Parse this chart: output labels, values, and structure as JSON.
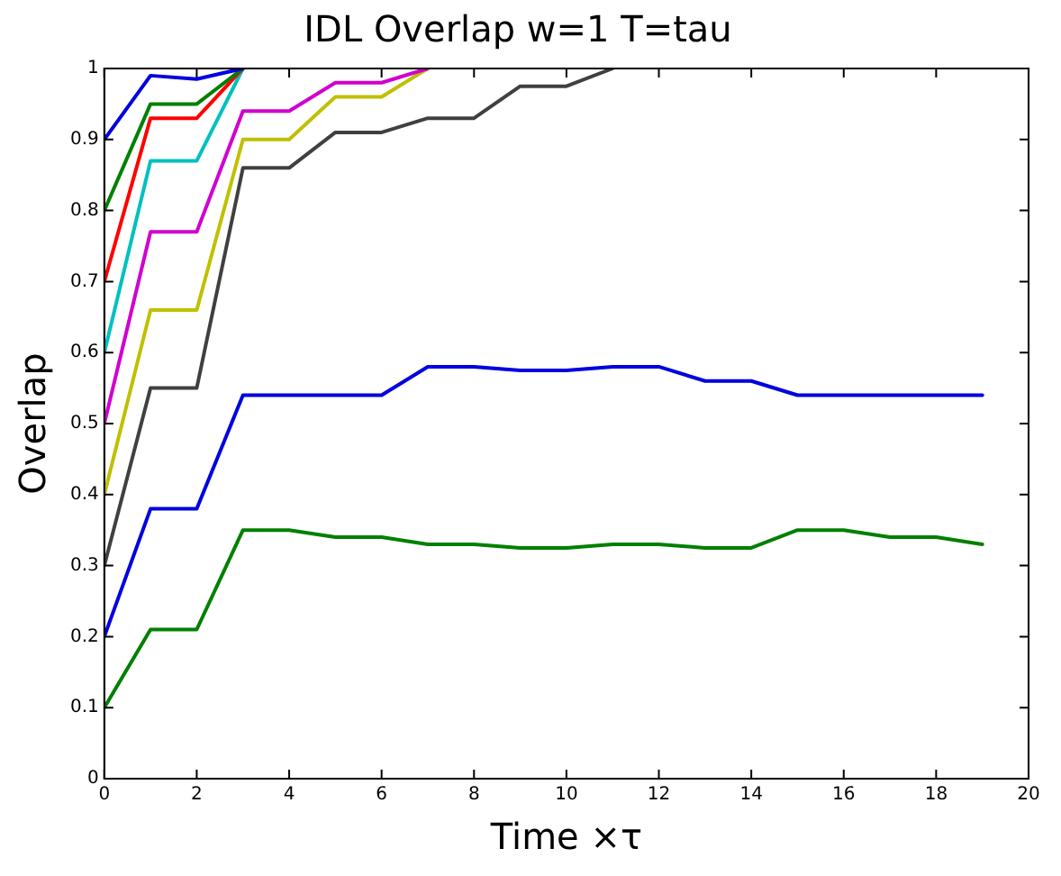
{
  "chart_data": {
    "type": "line",
    "title": "IDL Overlap w=1 T=tau",
    "xlabel": "Time ×τ",
    "ylabel": "Overlap",
    "x": [
      0,
      1,
      2,
      3,
      4,
      5,
      6,
      7,
      8,
      9,
      10,
      11,
      12,
      13,
      14,
      15,
      16,
      17,
      18,
      19
    ],
    "xlim": [
      0,
      20
    ],
    "xticks": [
      0,
      2,
      4,
      6,
      8,
      10,
      12,
      14,
      16,
      18,
      20
    ],
    "ylim": [
      0,
      1
    ],
    "yticks": [
      0,
      0.1,
      0.2,
      0.3,
      0.4,
      0.5,
      0.6,
      0.7,
      0.8,
      0.9,
      1
    ],
    "grid": false,
    "legend": false,
    "marker": "none",
    "line_style": "solid",
    "series": [
      {
        "color": "#0000e0",
        "values": [
          0.9,
          0.99,
          0.985,
          1,
          null,
          null,
          null,
          null,
          null,
          null,
          null,
          null,
          null,
          null,
          null,
          null,
          null,
          null,
          null,
          null
        ]
      },
      {
        "color": "#008000",
        "values": [
          0.8,
          0.95,
          0.95,
          1,
          null,
          null,
          null,
          null,
          null,
          null,
          null,
          null,
          null,
          null,
          null,
          null,
          null,
          null,
          null,
          null
        ]
      },
      {
        "color": "#ff0000",
        "values": [
          0.7,
          0.93,
          0.93,
          1,
          null,
          null,
          null,
          null,
          null,
          null,
          null,
          null,
          null,
          null,
          null,
          null,
          null,
          null,
          null,
          null
        ]
      },
      {
        "color": "#00c0c0",
        "values": [
          0.6,
          0.87,
          0.87,
          1,
          null,
          null,
          null,
          null,
          null,
          null,
          null,
          null,
          null,
          null,
          null,
          null,
          null,
          null,
          null,
          null
        ]
      },
      {
        "color": "#d000d0",
        "values": [
          0.5,
          0.77,
          0.77,
          0.94,
          0.94,
          0.98,
          0.98,
          1,
          null,
          null,
          null,
          null,
          null,
          null,
          null,
          null,
          null,
          null,
          null,
          null
        ]
      },
      {
        "color": "#c0c000",
        "values": [
          0.4,
          0.66,
          0.66,
          0.9,
          0.9,
          0.96,
          0.96,
          1,
          null,
          null,
          null,
          null,
          null,
          null,
          null,
          null,
          null,
          null,
          null,
          null
        ]
      },
      {
        "color": "#404040",
        "values": [
          0.3,
          0.55,
          0.55,
          0.86,
          0.86,
          0.91,
          0.91,
          0.93,
          0.93,
          0.975,
          0.975,
          1,
          null,
          null,
          null,
          null,
          null,
          null,
          null,
          null
        ]
      },
      {
        "color": "#0000e0",
        "values": [
          0.2,
          0.38,
          0.38,
          0.54,
          0.54,
          0.54,
          0.54,
          0.58,
          0.58,
          0.575,
          0.575,
          0.58,
          0.58,
          0.56,
          0.56,
          0.54,
          0.54,
          0.54,
          0.54,
          0.54
        ]
      },
      {
        "color": "#008000",
        "values": [
          0.1,
          0.21,
          0.21,
          0.35,
          0.35,
          0.34,
          0.34,
          0.33,
          0.33,
          0.325,
          0.325,
          0.33,
          0.33,
          0.325,
          0.325,
          0.35,
          0.35,
          0.34,
          0.34,
          0.33
        ]
      }
    ]
  }
}
